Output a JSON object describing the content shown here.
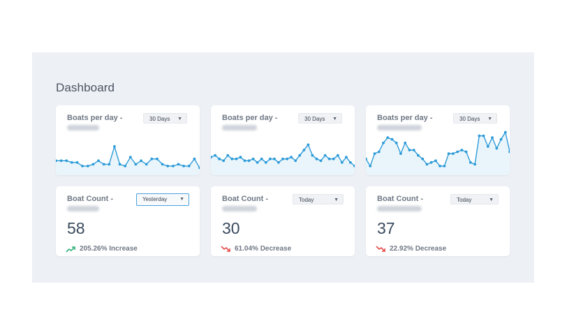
{
  "dashboard": {
    "title": "Dashboard"
  },
  "boats_per_day": [
    {
      "title": "Boats per day -",
      "range": "30 Days"
    },
    {
      "title": "Boats per day -",
      "range": "30 Days"
    },
    {
      "title": "Boats per day -",
      "range": "30 Days"
    }
  ],
  "boat_count": [
    {
      "title": "Boat Count -",
      "range": "Yesterday",
      "count": "58",
      "change": "205.26% Increase",
      "direction": "up"
    },
    {
      "title": "Boat Count -",
      "range": "Today",
      "count": "30",
      "change": "61.04% Decrease",
      "direction": "down"
    },
    {
      "title": "Boat Count -",
      "range": "Today",
      "count": "37",
      "change": "22.92% Decrease",
      "direction": "down"
    }
  ],
  "colors": {
    "line": "#2d9bd8",
    "fill": "#eaf5fb",
    "up": "#2fb17a",
    "down": "#e84a4a"
  },
  "icons": {
    "dropdown": "chevron-down-icon",
    "increase": "trend-up-icon",
    "decrease": "trend-down-icon"
  },
  "chart_data": [
    {
      "type": "line",
      "series": [
        {
          "values": [
            5,
            5,
            5,
            4,
            4,
            2,
            2,
            3,
            5,
            3,
            3,
            13,
            3,
            2,
            7,
            3,
            5,
            3,
            6,
            6,
            3,
            2,
            2,
            3,
            2,
            2,
            6,
            1
          ]
        }
      ]
    },
    {
      "type": "line",
      "series": [
        {
          "values": [
            7,
            8,
            6,
            5,
            8,
            6,
            6,
            7,
            5,
            5,
            6,
            4,
            6,
            4,
            6,
            6,
            4,
            6,
            6,
            7,
            5,
            8,
            11,
            14,
            8,
            6,
            5,
            8,
            6,
            6,
            8,
            4,
            7,
            4,
            2
          ]
        }
      ]
    },
    {
      "type": "line",
      "series": [
        {
          "values": [
            6,
            2,
            9,
            10,
            15,
            18,
            17,
            15,
            9,
            15,
            11,
            11,
            8,
            6,
            3,
            4,
            5,
            2,
            2,
            9,
            9,
            10,
            11,
            10,
            4,
            3,
            19,
            19,
            13,
            18,
            12,
            17,
            21,
            10
          ]
        }
      ]
    }
  ]
}
